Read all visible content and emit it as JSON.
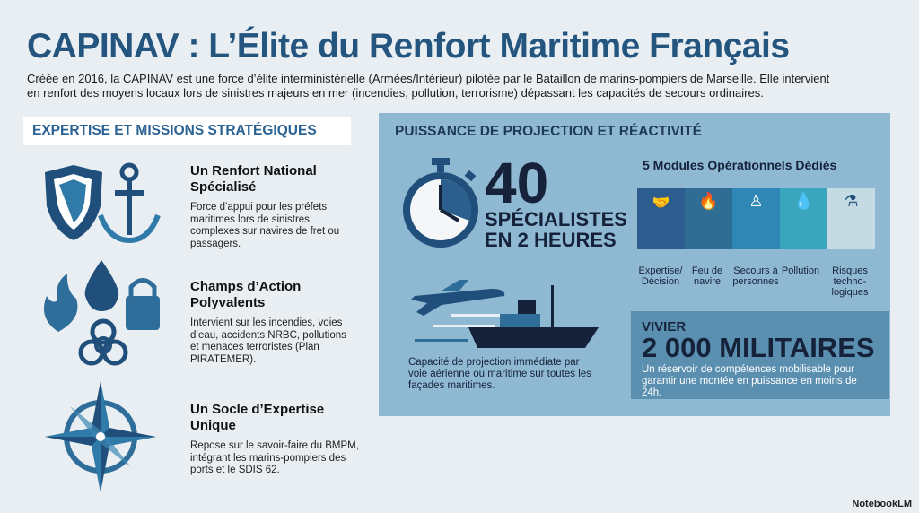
{
  "title": "CAPINAV : L’Élite du Renfort Maritime Français",
  "intro": "Créée en 2016, la CAPINAV est une force d’élite interministérielle (Armées/Intérieur) pilotée par le Bataillon de marins-pompiers de Marseille. Elle intervient en renfort des moyens locaux lors de sinistres majeurs en mer  (incendies, pollution, terrorisme) dépassant les capacités de secours ordinaires.",
  "left": {
    "heading": "EXPERTISE ET MISSIONS STRATÉGIQUES",
    "items": [
      {
        "title": "Un Renfort National Spécialisé",
        "text": "Force d’appui pour les préfets maritimes lors de sinistres complexes sur navires de fret ou passagers."
      },
      {
        "title": "Champs d’Action Polyvalents",
        "text": "Intervient sur les incendies, voies d’eau, accidents NRBC, pollutions et menaces terroristes (Plan PIRATEMER)."
      },
      {
        "title": "Un Socle d’Expertise Unique",
        "text": "Repose sur le savoir-faire du BMPM, intégrant les marins-pompiers des ports et le SDIS 62."
      }
    ]
  },
  "right": {
    "heading": "PUISSANCE DE PROJECTION ET RÉACTIVITÉ",
    "big_number": "40",
    "line1": "SPÉCIALISTES",
    "line2": "EN 2 HEURES",
    "modules_title": "5 Modules Opérationnels Dédiés",
    "modules": [
      {
        "label": "Expertise/ Décision",
        "icon": "handshake-icon",
        "color": "#2d5c8f"
      },
      {
        "label": "Feu de navire",
        "icon": "flame-icon",
        "color": "#2f6d95"
      },
      {
        "label": "Secours à personnes",
        "icon": "person-icon",
        "color": "#2f87b5"
      },
      {
        "label": "Pollution",
        "icon": "oil-drop-icon",
        "color": "#3aa6bd"
      },
      {
        "label": "Risques techno-logiques",
        "icon": "flask-icon",
        "color": "#c5dbe4"
      }
    ],
    "caption": "Capacité de projection immédiate par voie aérienne ou maritime sur toutes les façades maritimes.",
    "vivier": {
      "label": "VIVIER",
      "number": "2 000 MILITAIRES",
      "text": "Un réservoir de compétences mobilisable pour garantir une montée en puissance en moins de 24h."
    }
  },
  "brand": "NotebookLM"
}
